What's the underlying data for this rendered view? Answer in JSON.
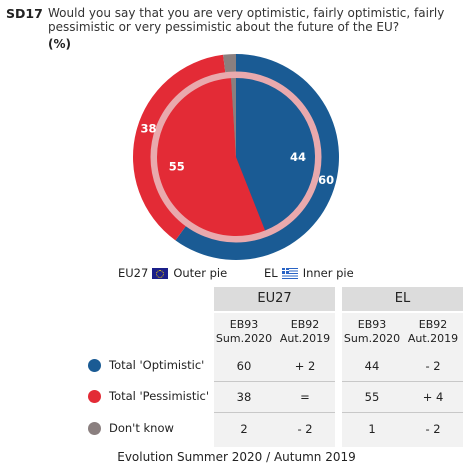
{
  "header": {
    "code": "SD17",
    "question": "Would you say that you are very optimistic, fairly optimistic, fairly pessimistic or very pessimistic about the future of the EU?",
    "unit": "(%)"
  },
  "colors": {
    "optimistic": "#1a5b94",
    "pessimistic": "#e32b36",
    "dont_know": "#8a7f7f",
    "inner_ring": "#e9a9ad"
  },
  "legend": {
    "eu_label": "EU27",
    "eu_flag": "eu-flag-icon",
    "eu_desc": "Outer pie",
    "el_label": "EL",
    "el_flag": "greece-flag-icon",
    "el_desc": "Inner pie"
  },
  "table": {
    "groups": [
      "EU27",
      "EL"
    ],
    "subheaders": [
      [
        "EB93",
        "Sum.2020"
      ],
      [
        "EB92",
        "Aut.2019"
      ],
      [
        "EB93",
        "Sum.2020"
      ],
      [
        "EB92",
        "Aut.2019"
      ]
    ],
    "rows": [
      {
        "label": "Total 'Optimistic'",
        "values": [
          "60",
          "+ 2",
          "44",
          "- 2"
        ]
      },
      {
        "label": "Total 'Pessimistic'",
        "values": [
          "38",
          "=",
          "55",
          "+ 4"
        ]
      },
      {
        "label": "Don't know",
        "values": [
          "2",
          "- 2",
          "1",
          "- 2"
        ]
      }
    ]
  },
  "caption": "Evolution Summer 2020 / Autumn 2019",
  "chart_data": {
    "type": "pie",
    "title": "",
    "categories": [
      "Total 'Optimistic'",
      "Total 'Pessimistic'",
      "Don't know"
    ],
    "series": [
      {
        "name": "EU27",
        "ring": "outer",
        "values": [
          60,
          38,
          2
        ]
      },
      {
        "name": "EL",
        "ring": "inner",
        "values": [
          44,
          55,
          1
        ]
      }
    ],
    "data_labels": {
      "outer": [
        "60",
        "38",
        ""
      ],
      "inner": [
        "44",
        "55",
        ""
      ]
    },
    "legend_position": "bottom"
  }
}
